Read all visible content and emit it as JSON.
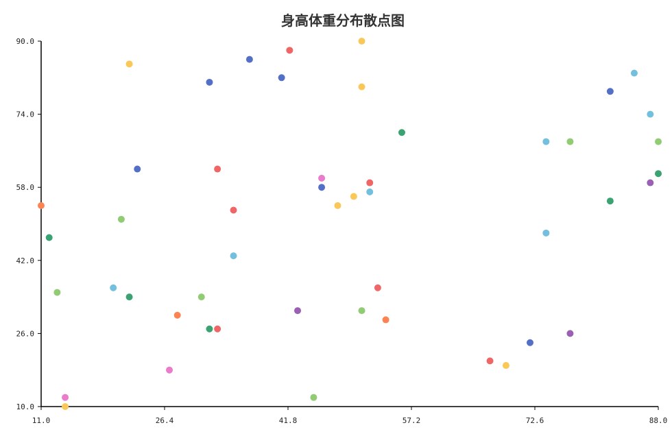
{
  "chart_data": {
    "type": "scatter",
    "title": "身高体重分布散点图",
    "xlabel": "",
    "ylabel": "",
    "xlim": [
      11.0,
      88.0
    ],
    "ylim": [
      10.0,
      90.0
    ],
    "x_ticks": [
      "11.0",
      "26.4",
      "41.8",
      "57.2",
      "72.6",
      "88.0"
    ],
    "y_ticks": [
      "10.0",
      "26.0",
      "42.0",
      "58.0",
      "74.0",
      "90.0"
    ],
    "grid": false,
    "legend": "none",
    "colors": [
      "#5470c6",
      "#91cc75",
      "#fac858",
      "#ee6666",
      "#73c0de",
      "#3ba272",
      "#fc8452",
      "#9a60b4",
      "#ea7ccc"
    ],
    "points": [
      {
        "x": 11.0,
        "y": 54.0,
        "color": "#fc8452"
      },
      {
        "x": 12.0,
        "y": 47.0,
        "color": "#3ba272"
      },
      {
        "x": 13.0,
        "y": 35.0,
        "color": "#91cc75"
      },
      {
        "x": 14.0,
        "y": 12.0,
        "color": "#ea7ccc"
      },
      {
        "x": 14.0,
        "y": 10.0,
        "color": "#fac858"
      },
      {
        "x": 20.0,
        "y": 36.0,
        "color": "#73c0de"
      },
      {
        "x": 21.0,
        "y": 51.0,
        "color": "#91cc75"
      },
      {
        "x": 22.0,
        "y": 85.0,
        "color": "#fac858"
      },
      {
        "x": 22.0,
        "y": 34.0,
        "color": "#3ba272"
      },
      {
        "x": 23.0,
        "y": 62.0,
        "color": "#5470c6"
      },
      {
        "x": 27.0,
        "y": 18.0,
        "color": "#ea7ccc"
      },
      {
        "x": 28.0,
        "y": 30.0,
        "color": "#fc8452"
      },
      {
        "x": 31.0,
        "y": 34.0,
        "color": "#91cc75"
      },
      {
        "x": 32.0,
        "y": 81.0,
        "color": "#5470c6"
      },
      {
        "x": 32.0,
        "y": 27.0,
        "color": "#3ba272"
      },
      {
        "x": 33.0,
        "y": 62.0,
        "color": "#ee6666"
      },
      {
        "x": 33.0,
        "y": 27.0,
        "color": "#ee6666"
      },
      {
        "x": 35.0,
        "y": 53.0,
        "color": "#ee6666"
      },
      {
        "x": 35.0,
        "y": 43.0,
        "color": "#73c0de"
      },
      {
        "x": 37.0,
        "y": 86.0,
        "color": "#5470c6"
      },
      {
        "x": 41.0,
        "y": 82.0,
        "color": "#5470c6"
      },
      {
        "x": 42.0,
        "y": 88.0,
        "color": "#ee6666"
      },
      {
        "x": 43.0,
        "y": 31.0,
        "color": "#9a60b4"
      },
      {
        "x": 45.0,
        "y": 12.0,
        "color": "#91cc75"
      },
      {
        "x": 46.0,
        "y": 60.0,
        "color": "#ea7ccc"
      },
      {
        "x": 46.0,
        "y": 58.0,
        "color": "#5470c6"
      },
      {
        "x": 48.0,
        "y": 54.0,
        "color": "#fac858"
      },
      {
        "x": 50.0,
        "y": 56.0,
        "color": "#fac858"
      },
      {
        "x": 51.0,
        "y": 90.0,
        "color": "#fac858"
      },
      {
        "x": 51.0,
        "y": 80.0,
        "color": "#fac858"
      },
      {
        "x": 51.0,
        "y": 31.0,
        "color": "#91cc75"
      },
      {
        "x": 52.0,
        "y": 59.0,
        "color": "#ee6666"
      },
      {
        "x": 52.0,
        "y": 57.0,
        "color": "#73c0de"
      },
      {
        "x": 53.0,
        "y": 36.0,
        "color": "#ee6666"
      },
      {
        "x": 54.0,
        "y": 29.0,
        "color": "#fc8452"
      },
      {
        "x": 56.0,
        "y": 70.0,
        "color": "#3ba272"
      },
      {
        "x": 67.0,
        "y": 20.0,
        "color": "#ee6666"
      },
      {
        "x": 69.0,
        "y": 19.0,
        "color": "#fac858"
      },
      {
        "x": 72.0,
        "y": 24.0,
        "color": "#5470c6"
      },
      {
        "x": 74.0,
        "y": 68.0,
        "color": "#73c0de"
      },
      {
        "x": 74.0,
        "y": 48.0,
        "color": "#73c0de"
      },
      {
        "x": 77.0,
        "y": 68.0,
        "color": "#91cc75"
      },
      {
        "x": 77.0,
        "y": 26.0,
        "color": "#9a60b4"
      },
      {
        "x": 82.0,
        "y": 79.0,
        "color": "#5470c6"
      },
      {
        "x": 82.0,
        "y": 55.0,
        "color": "#3ba272"
      },
      {
        "x": 85.0,
        "y": 83.0,
        "color": "#73c0de"
      },
      {
        "x": 87.0,
        "y": 74.0,
        "color": "#73c0de"
      },
      {
        "x": 87.0,
        "y": 59.0,
        "color": "#9a60b4"
      },
      {
        "x": 88.0,
        "y": 68.0,
        "color": "#91cc75"
      },
      {
        "x": 88.0,
        "y": 61.0,
        "color": "#3ba272"
      }
    ]
  }
}
